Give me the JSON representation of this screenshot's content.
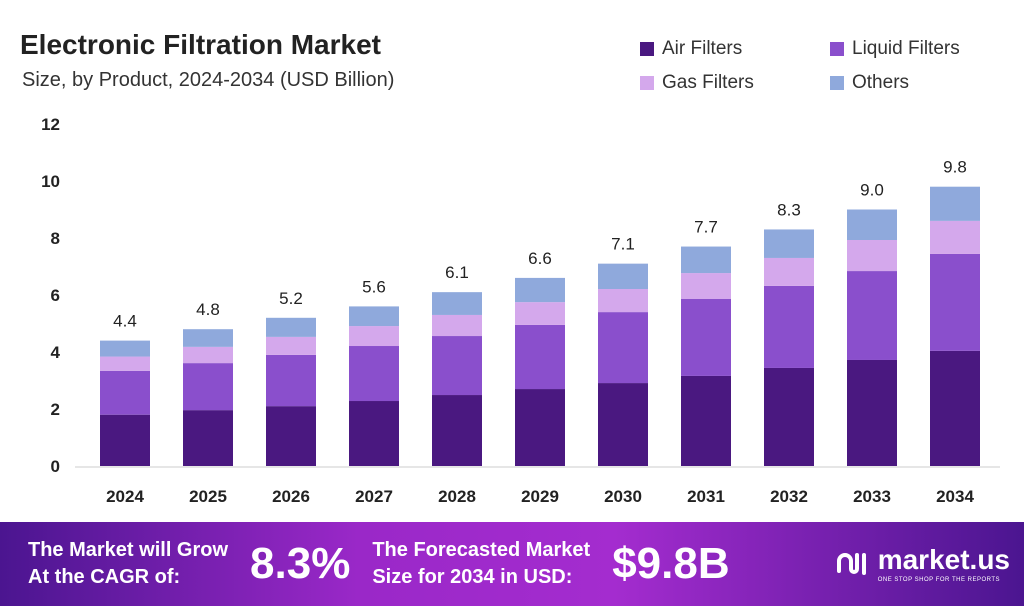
{
  "chart_data": {
    "type": "bar",
    "stacked": true,
    "title": "Electronic Filtration Market",
    "subtitle": "Size, by Product, 2024-2034 (USD Billion)",
    "categories": [
      "2024",
      "2025",
      "2026",
      "2027",
      "2028",
      "2029",
      "2030",
      "2031",
      "2032",
      "2033",
      "2034"
    ],
    "series": [
      {
        "name": "Air Filters",
        "color": "#4a1880",
        "values": [
          1.8,
          1.96,
          2.1,
          2.28,
          2.49,
          2.7,
          2.91,
          3.16,
          3.44,
          3.72,
          4.04
        ]
      },
      {
        "name": "Liquid Filters",
        "color": "#8a4fcc",
        "values": [
          1.54,
          1.65,
          1.8,
          1.93,
          2.07,
          2.25,
          2.49,
          2.7,
          2.88,
          3.12,
          3.4
        ]
      },
      {
        "name": "Gas Filters",
        "color": "#d4a8ec",
        "values": [
          0.5,
          0.57,
          0.63,
          0.7,
          0.74,
          0.8,
          0.81,
          0.91,
          0.98,
          1.09,
          1.16
        ]
      },
      {
        "name": "Others",
        "color": "#8fa9dc",
        "values": [
          0.56,
          0.62,
          0.67,
          0.69,
          0.8,
          0.85,
          0.89,
          0.93,
          1.0,
          1.07,
          1.2
        ]
      }
    ],
    "totals": [
      "4.4",
      "4.8",
      "5.2",
      "5.6",
      "6.1",
      "6.6",
      "7.1",
      "7.7",
      "8.3",
      "9.0",
      "9.8"
    ],
    "yticks": [
      "0",
      "2",
      "4",
      "6",
      "8",
      "10",
      "12"
    ],
    "ylim": [
      0,
      12
    ],
    "grid": false,
    "legend": "top-right"
  },
  "footer": {
    "cagr_label_1": "The Market will Grow",
    "cagr_label_2": "At the CAGR of:",
    "cagr_value": "8.3%",
    "forecast_label_1": "The Forecasted Market",
    "forecast_label_2": "Size for 2034 in USD:",
    "forecast_value": "$9.8B",
    "logo_name": "market.us",
    "logo_tagline": "ONE STOP SHOP FOR THE REPORTS"
  }
}
